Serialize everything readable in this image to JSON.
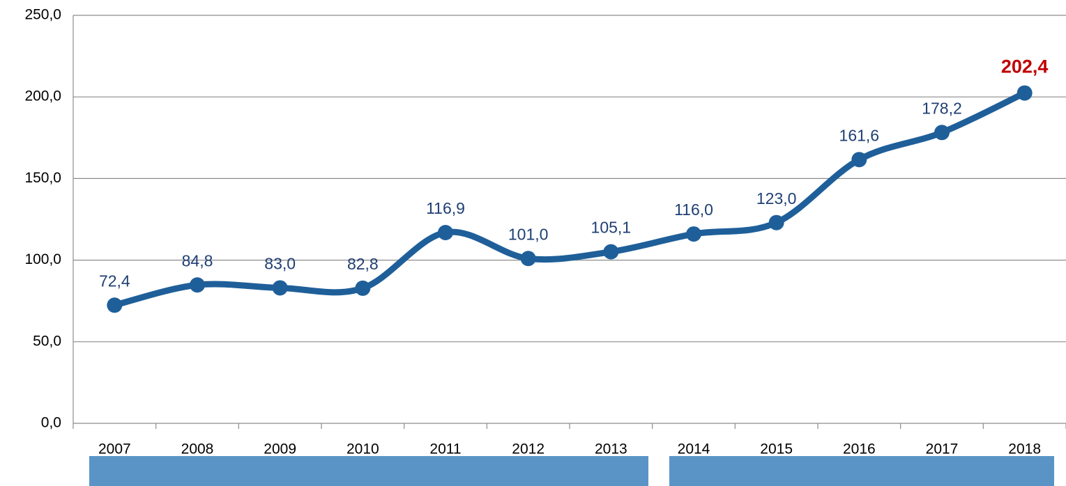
{
  "chart_data": {
    "type": "line",
    "categories": [
      "2007",
      "2008",
      "2009",
      "2010",
      "2011",
      "2012",
      "2013",
      "2014",
      "2015",
      "2016",
      "2017",
      "2018"
    ],
    "series": [
      {
        "color": "#1f5f99",
        "values": [
          72.4,
          84.8,
          83.0,
          82.8,
          116.9,
          101.0,
          105.1,
          116.0,
          123.0,
          161.6,
          178.2,
          202.4
        ],
        "value_labels": [
          "72,4",
          "84,8",
          "83,0",
          "82,8",
          "116,9",
          "101,0",
          "105,1",
          "116,0",
          "123,0",
          "161,6",
          "178,2",
          "202,4"
        ]
      }
    ],
    "ylim": [
      0,
      250
    ],
    "yticks": [
      {
        "value": 0,
        "label": "0,0"
      },
      {
        "value": 50,
        "label": "50,0"
      },
      {
        "value": 100,
        "label": "100,0"
      },
      {
        "value": 150,
        "label": "150,0"
      },
      {
        "value": 200,
        "label": "200,0"
      },
      {
        "value": 250,
        "label": "250,0"
      }
    ],
    "grid": true,
    "highlight_color": "#c00000"
  }
}
